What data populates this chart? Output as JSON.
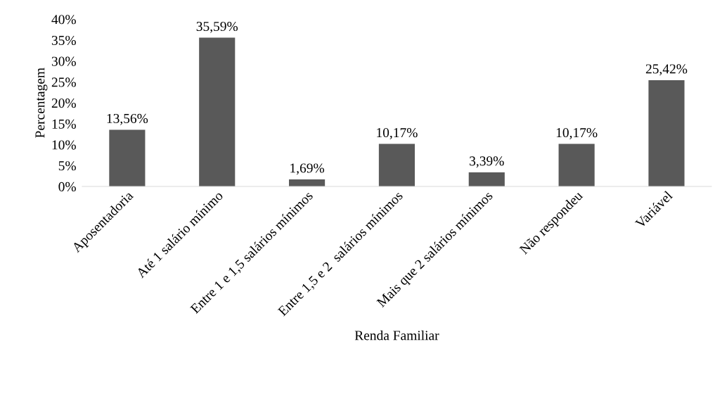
{
  "chart_data": {
    "type": "bar",
    "xlabel": "Renda Familiar",
    "ylabel": "Percentagem",
    "categories": [
      "Aposentadoria",
      "Até 1 salário mínimo",
      "Entre 1 e 1,5 salários mínimos",
      "Entre 1,5 e 2  salários mínimos",
      "Mais que 2 salários mínimos",
      "Não respondeu",
      "Variável"
    ],
    "values": [
      13.56,
      35.59,
      1.69,
      10.17,
      3.39,
      10.17,
      25.42
    ],
    "value_labels": [
      "13,56%",
      "35,59%",
      "1,69%",
      "10,17%",
      "3,39%",
      "10,17%",
      "25,42%"
    ],
    "color": "#595959",
    "ylim": [
      0,
      40
    ],
    "yticks": [
      {
        "value": 0,
        "label": "0%"
      },
      {
        "value": 5,
        "label": "5%"
      },
      {
        "value": 10,
        "label": "10%"
      },
      {
        "value": 15,
        "label": "15%"
      },
      {
        "value": 20,
        "label": "20%"
      },
      {
        "value": 25,
        "label": "25%"
      },
      {
        "value": 30,
        "label": "30%"
      },
      {
        "value": 35,
        "label": "35%"
      },
      {
        "value": 40,
        "label": "40%"
      }
    ],
    "grid": false,
    "legend": false
  }
}
